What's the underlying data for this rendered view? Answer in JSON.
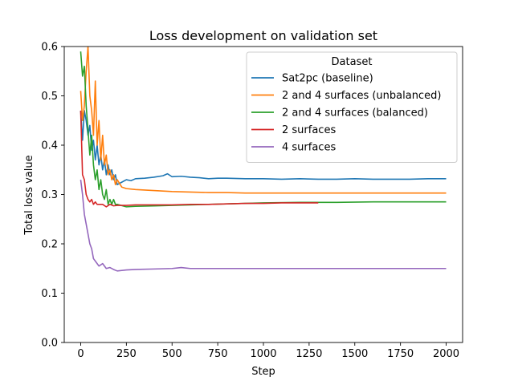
{
  "chart_data": {
    "type": "line",
    "title": "Loss development on validation set",
    "xlabel": "Step",
    "ylabel": "Total loss value",
    "xlim": [
      -90,
      2090
    ],
    "ylim": [
      0.0,
      0.6
    ],
    "xticks": [
      0,
      250,
      500,
      750,
      1000,
      1250,
      1500,
      1750,
      2000
    ],
    "yticks": [
      0.0,
      0.1,
      0.2,
      0.3,
      0.4,
      0.5,
      0.6
    ],
    "grid": false,
    "legend": {
      "title": "Dataset",
      "position": "top-right"
    },
    "series": [
      {
        "name": "Sat2pc (baseline)",
        "color": "#1f77b4",
        "x": [
          0,
          10,
          20,
          30,
          40,
          50,
          60,
          70,
          80,
          90,
          100,
          110,
          120,
          130,
          140,
          150,
          160,
          170,
          180,
          190,
          200,
          225,
          250,
          275,
          300,
          350,
          400,
          450,
          475,
          500,
          550,
          600,
          650,
          700,
          750,
          800,
          900,
          1000,
          1100,
          1200,
          1300,
          1400,
          1500,
          1600,
          1700,
          1800,
          1900,
          2000
        ],
        "y": [
          0.47,
          0.41,
          0.47,
          0.45,
          0.42,
          0.44,
          0.39,
          0.41,
          0.37,
          0.4,
          0.36,
          0.38,
          0.35,
          0.37,
          0.34,
          0.36,
          0.34,
          0.35,
          0.33,
          0.34,
          0.32,
          0.325,
          0.33,
          0.328,
          0.332,
          0.333,
          0.335,
          0.338,
          0.342,
          0.336,
          0.337,
          0.335,
          0.334,
          0.332,
          0.333,
          0.333,
          0.332,
          0.332,
          0.331,
          0.332,
          0.331,
          0.331,
          0.332,
          0.331,
          0.331,
          0.331,
          0.332,
          0.332
        ]
      },
      {
        "name": "2 and 4 surfaces (unbalanced)",
        "color": "#ff7f0e",
        "x": [
          0,
          10,
          20,
          30,
          40,
          50,
          60,
          70,
          80,
          90,
          100,
          110,
          120,
          130,
          140,
          150,
          160,
          170,
          180,
          190,
          200,
          225,
          250,
          300,
          350,
          400,
          450,
          500,
          600,
          700,
          800,
          900,
          1000,
          1200,
          1400,
          1600,
          1800,
          2000
        ],
        "y": [
          0.51,
          0.45,
          0.48,
          0.55,
          0.6,
          0.5,
          0.47,
          0.42,
          0.53,
          0.4,
          0.45,
          0.37,
          0.42,
          0.36,
          0.38,
          0.34,
          0.35,
          0.33,
          0.34,
          0.32,
          0.33,
          0.315,
          0.312,
          0.31,
          0.309,
          0.308,
          0.307,
          0.306,
          0.305,
          0.304,
          0.304,
          0.303,
          0.303,
          0.303,
          0.303,
          0.303,
          0.303,
          0.303
        ]
      },
      {
        "name": "2 and 4 surfaces (balanced)",
        "color": "#2ca02c",
        "x": [
          0,
          10,
          20,
          30,
          40,
          50,
          60,
          70,
          80,
          90,
          100,
          110,
          120,
          130,
          140,
          150,
          160,
          170,
          180,
          190,
          200,
          250,
          300,
          400,
          500,
          600,
          700,
          800,
          900,
          1000,
          1200,
          1400,
          1600,
          1800,
          2000
        ],
        "y": [
          0.59,
          0.54,
          0.56,
          0.48,
          0.43,
          0.38,
          0.42,
          0.36,
          0.33,
          0.35,
          0.31,
          0.33,
          0.3,
          0.29,
          0.31,
          0.28,
          0.29,
          0.28,
          0.29,
          0.28,
          0.28,
          0.275,
          0.276,
          0.277,
          0.278,
          0.279,
          0.28,
          0.281,
          0.282,
          0.283,
          0.284,
          0.284,
          0.285,
          0.285,
          0.285
        ]
      },
      {
        "name": "2 surfaces",
        "color": "#d62728",
        "x": [
          0,
          10,
          20,
          30,
          40,
          50,
          60,
          70,
          80,
          90,
          100,
          120,
          140,
          160,
          180,
          200,
          250,
          300,
          400,
          500,
          600,
          700,
          800,
          900,
          1000,
          1100,
          1200,
          1300
        ],
        "y": [
          0.47,
          0.34,
          0.33,
          0.3,
          0.29,
          0.285,
          0.29,
          0.28,
          0.285,
          0.28,
          0.28,
          0.28,
          0.275,
          0.28,
          0.277,
          0.278,
          0.278,
          0.279,
          0.279,
          0.279,
          0.28,
          0.28,
          0.281,
          0.282,
          0.282,
          0.283,
          0.283,
          0.283
        ]
      },
      {
        "name": "4 surfaces",
        "color": "#9467bd",
        "x": [
          0,
          10,
          20,
          30,
          40,
          50,
          60,
          70,
          80,
          90,
          100,
          120,
          140,
          160,
          180,
          200,
          250,
          300,
          400,
          500,
          550,
          600,
          700,
          800,
          1000,
          1200,
          1400,
          1600,
          1800,
          2000
        ],
        "y": [
          0.33,
          0.3,
          0.26,
          0.24,
          0.22,
          0.2,
          0.19,
          0.17,
          0.165,
          0.16,
          0.155,
          0.16,
          0.15,
          0.152,
          0.148,
          0.145,
          0.147,
          0.148,
          0.149,
          0.15,
          0.152,
          0.15,
          0.15,
          0.15,
          0.15,
          0.15,
          0.15,
          0.15,
          0.15,
          0.15
        ]
      }
    ]
  }
}
